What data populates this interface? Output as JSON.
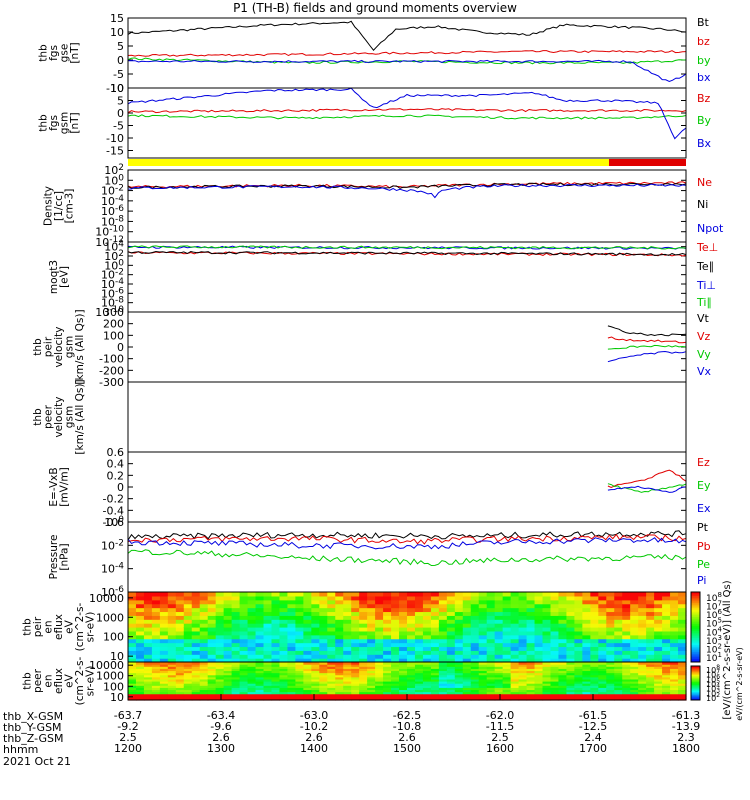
{
  "title": "P1 (TH-B) fields and ground moments overview",
  "date_label": "2021 Oct 21",
  "row_labels": [
    "thb_X-GSM",
    "thb_Y-GSM",
    "thb_Z-GSM",
    "hhmm"
  ],
  "time_axis": {
    "columns": [
      {
        "x": "-63.7",
        "y": "-9.2",
        "z": "2.5",
        "hhmm": "1200"
      },
      {
        "x": "-63.4",
        "y": "-9.6",
        "z": "2.6",
        "hhmm": "1300"
      },
      {
        "x": "-63.0",
        "y": "-10.2",
        "z": "2.6",
        "hhmm": "1400"
      },
      {
        "x": "-62.5",
        "y": "-10.8",
        "z": "2.6",
        "hhmm": "1500"
      },
      {
        "x": "-62.0",
        "y": "-11.5",
        "z": "2.5",
        "hhmm": "1600"
      },
      {
        "x": "-61.5",
        "y": "-12.5",
        "z": "2.4",
        "hhmm": "1700"
      },
      {
        "x": "-61.3",
        "y": "-13.9",
        "z": "2.3",
        "hhmm": "1800"
      }
    ]
  },
  "colors": {
    "black": "#000000",
    "red": "#e00000",
    "green": "#00c800",
    "blue": "#0000e0",
    "yellow": "#ffff00"
  },
  "chart_data": [
    {
      "type": "line",
      "ylabel": [
        "thb",
        "fgs",
        "gse",
        "[nT]"
      ],
      "ylim": [
        -10,
        15
      ],
      "yticks": [
        -10,
        -5,
        0,
        5,
        10,
        15
      ],
      "series": [
        {
          "name": "Bt",
          "color": "#000000",
          "values": [
            [
              0,
              9.5
            ],
            [
              0.25,
              12.5
            ],
            [
              0.4,
              13.5
            ],
            [
              0.44,
              3.5
            ],
            [
              0.48,
              11
            ],
            [
              0.55,
              12
            ],
            [
              0.63,
              10
            ],
            [
              0.72,
              9
            ],
            [
              0.78,
              12.5
            ],
            [
              0.86,
              12
            ],
            [
              0.96,
              11
            ],
            [
              1.0,
              10
            ]
          ]
        },
        {
          "name": "bz",
          "color": "#e00000",
          "values": [
            [
              0,
              1.5
            ],
            [
              0.3,
              2
            ],
            [
              0.5,
              2.5
            ],
            [
              0.7,
              3
            ],
            [
              0.85,
              3
            ],
            [
              1.0,
              3
            ]
          ]
        },
        {
          "name": "by",
          "color": "#00c800",
          "values": [
            [
              0,
              0.5
            ],
            [
              0.3,
              -1
            ],
            [
              0.5,
              -0.5
            ],
            [
              0.7,
              -1
            ],
            [
              0.9,
              -1
            ],
            [
              1.0,
              0
            ]
          ]
        },
        {
          "name": "bx",
          "color": "#0000e0",
          "values": [
            [
              0,
              -0.5
            ],
            [
              0.5,
              -0.5
            ],
            [
              0.9,
              -0.5
            ],
            [
              0.97,
              -8
            ],
            [
              1.0,
              -5
            ]
          ]
        }
      ]
    },
    {
      "type": "line",
      "ylabel": [
        "thb",
        "fgs",
        "gsm",
        "[nT]"
      ],
      "ylim": [
        -18,
        10
      ],
      "yticks": [
        -15,
        -10,
        -5,
        0,
        5,
        10
      ],
      "series": [
        {
          "name": "Bz",
          "color": "#e00000",
          "values": [
            [
              0,
              0.5
            ],
            [
              0.3,
              1
            ],
            [
              0.5,
              1.5
            ],
            [
              0.7,
              1
            ],
            [
              0.9,
              1
            ],
            [
              1.0,
              1
            ]
          ]
        },
        {
          "name": "By",
          "color": "#00c800",
          "values": [
            [
              0,
              -1
            ],
            [
              0.3,
              -2
            ],
            [
              0.5,
              -1
            ],
            [
              0.7,
              -2
            ],
            [
              0.9,
              -2
            ],
            [
              1.0,
              -1
            ]
          ]
        },
        {
          "name": "Bx",
          "color": "#0000e0",
          "values": [
            [
              0,
              4
            ],
            [
              0.25,
              9
            ],
            [
              0.4,
              9.5
            ],
            [
              0.44,
              2
            ],
            [
              0.5,
              7
            ],
            [
              0.63,
              7
            ],
            [
              0.73,
              8
            ],
            [
              0.78,
              5
            ],
            [
              0.86,
              5
            ],
            [
              0.95,
              4
            ],
            [
              0.98,
              -10
            ],
            [
              1.0,
              -6
            ]
          ]
        }
      ]
    },
    {
      "type": "bar",
      "name": "mode bar",
      "segments": [
        {
          "from": 0,
          "to": 0.862,
          "color": "#ffff00"
        },
        {
          "from": 0.862,
          "to": 1.0,
          "color": "#e00000"
        }
      ]
    },
    {
      "type": "line",
      "ylabel": [
        "Density",
        "[1/cc]",
        "[cm-3]"
      ],
      "scale": "log",
      "ylim": [
        1e-12,
        100
      ],
      "yticks": [
        "10^2",
        "10^0",
        "10^-2",
        "10^-4",
        "10^-6",
        "10^-8",
        "10^-10",
        "10^-12"
      ],
      "series": [
        {
          "name": "Ne",
          "color": "#e00000",
          "values": [
            [
              0,
              0.05
            ],
            [
              0.3,
              0.1
            ],
            [
              0.5,
              0.05
            ],
            [
              0.7,
              0.2
            ],
            [
              1.0,
              0.3
            ]
          ]
        },
        {
          "name": "Ni",
          "color": "#000000",
          "values": [
            [
              0,
              0.04
            ],
            [
              0.3,
              0.08
            ],
            [
              0.5,
              0.04
            ],
            [
              0.7,
              0.15
            ],
            [
              1.0,
              0.2
            ]
          ]
        },
        {
          "name": "Npot",
          "color": "#0000e0",
          "values": [
            [
              0,
              0.03
            ],
            [
              0.3,
              0.06
            ],
            [
              0.55,
              0.0003
            ],
            [
              0.7,
              0.1
            ],
            [
              1.0,
              0.1
            ]
          ]
        }
      ]
    },
    {
      "type": "line",
      "ylabel": [
        "moqt3",
        "[eV]"
      ],
      "scale": "log",
      "ylim": [
        1e-10,
        100000.0
      ],
      "yticks": [
        "10^4",
        "10^2",
        "10^0",
        "10^-2",
        "10^-4",
        "10^-6",
        "10^-8",
        "10^-10"
      ],
      "series": [
        {
          "name": "Te⊥",
          "color": "#e00000",
          "values": [
            [
              0,
              500
            ],
            [
              0.5,
              300
            ],
            [
              0.9,
              200
            ],
            [
              1.0,
              150
            ]
          ]
        },
        {
          "name": "Te∥",
          "color": "#000000",
          "values": [
            [
              0,
              600
            ],
            [
              0.5,
              400
            ],
            [
              0.9,
              250
            ],
            [
              1.0,
              200
            ]
          ]
        },
        {
          "name": "Ti⊥",
          "color": "#0000e0",
          "values": [
            [
              0,
              8000
            ],
            [
              0.5,
              6000
            ],
            [
              0.9,
              5000
            ],
            [
              1.0,
              4000
            ]
          ]
        },
        {
          "name": "Ti∥",
          "color": "#00c800",
          "values": [
            [
              0,
              9000
            ],
            [
              0.5,
              7000
            ],
            [
              0.9,
              6000
            ],
            [
              1.0,
              5000
            ]
          ]
        }
      ]
    },
    {
      "type": "line",
      "ylabel": [
        "thb",
        "peir",
        "velocity",
        "gsm",
        "[km/s (All Qs)]"
      ],
      "ylim": [
        -300,
        300
      ],
      "yticks": [
        -300,
        -200,
        -100,
        0,
        100,
        200,
        300
      ],
      "series": [
        {
          "name": "Vt",
          "color": "#000000",
          "values": [
            [
              0.86,
              180
            ],
            [
              0.9,
              120
            ],
            [
              0.95,
              100
            ],
            [
              1.0,
              110
            ]
          ]
        },
        {
          "name": "Vz",
          "color": "#e00000",
          "values": [
            [
              0.86,
              80
            ],
            [
              0.9,
              60
            ],
            [
              0.95,
              50
            ],
            [
              1.0,
              40
            ]
          ]
        },
        {
          "name": "Vy",
          "color": "#00c800",
          "values": [
            [
              0.86,
              -20
            ],
            [
              0.9,
              0
            ],
            [
              0.95,
              10
            ],
            [
              1.0,
              0
            ]
          ]
        },
        {
          "name": "Vx",
          "color": "#0000e0",
          "values": [
            [
              0.86,
              -130
            ],
            [
              0.9,
              -80
            ],
            [
              0.95,
              -50
            ],
            [
              1.0,
              -40
            ]
          ]
        }
      ]
    },
    {
      "type": "line",
      "ylabel": [
        "thb",
        "peer",
        "velocity",
        "gsm",
        "[km/s (All Qs)]"
      ],
      "ylim": [
        0,
        1
      ],
      "yticks": [],
      "series": [
        {
          "name": "Vt",
          "color": "#000000",
          "values": []
        },
        {
          "name": "Vz",
          "color": "#e00000",
          "values": []
        },
        {
          "name": "Vy",
          "color": "#00c800",
          "values": []
        },
        {
          "name": "Vx",
          "color": "#0000e0",
          "values": []
        }
      ]
    },
    {
      "type": "line",
      "ylabel": [
        "E=-VxB",
        "[mV/m]"
      ],
      "ylim": [
        -0.6,
        0.6
      ],
      "yticks": [
        -0.6,
        -0.4,
        -0.2,
        0.0,
        0.2,
        0.4,
        0.6
      ],
      "series": [
        {
          "name": "Ez",
          "color": "#e00000",
          "values": [
            [
              0.86,
              0.0
            ],
            [
              0.92,
              0.1
            ],
            [
              0.97,
              0.3
            ],
            [
              1.0,
              0.1
            ]
          ]
        },
        {
          "name": "Ey",
          "color": "#00c800",
          "values": [
            [
              0.86,
              0.05
            ],
            [
              0.92,
              -0.1
            ],
            [
              0.97,
              0.0
            ],
            [
              1.0,
              0.05
            ]
          ]
        },
        {
          "name": "Ex",
          "color": "#0000e0",
          "values": [
            [
              0.86,
              -0.05
            ],
            [
              0.92,
              0.0
            ],
            [
              0.97,
              -0.1
            ],
            [
              1.0,
              0.0
            ]
          ]
        }
      ]
    },
    {
      "type": "line",
      "ylabel": [
        "Pressure",
        "[nPa]"
      ],
      "scale": "log",
      "ylim": [
        1e-06,
        1
      ],
      "yticks": [
        "10^0",
        "10^-2",
        "10^-4",
        "10^-6"
      ],
      "series": [
        {
          "name": "Pt",
          "color": "#000000",
          "values": [
            [
              0,
              0.05
            ],
            [
              0.3,
              0.08
            ],
            [
              0.6,
              0.06
            ],
            [
              0.9,
              0.1
            ],
            [
              1.0,
              0.1
            ]
          ]
        },
        {
          "name": "Pb",
          "color": "#e00000",
          "values": [
            [
              0,
              0.03
            ],
            [
              0.3,
              0.04
            ],
            [
              0.5,
              0.02
            ],
            [
              0.6,
              0.03
            ],
            [
              0.9,
              0.05
            ],
            [
              1.0,
              0.04
            ]
          ]
        },
        {
          "name": "Pe",
          "color": "#00c800",
          "values": [
            [
              0,
              0.003
            ],
            [
              0.3,
              0.0008
            ],
            [
              0.55,
              0.0003
            ],
            [
              0.7,
              0.0006
            ],
            [
              1.0,
              0.001
            ]
          ]
        },
        {
          "name": "Pi",
          "color": "#0000e0",
          "values": [
            [
              0,
              0.02
            ],
            [
              0.3,
              0.01
            ],
            [
              0.55,
              0.008
            ],
            [
              0.7,
              0.02
            ],
            [
              0.9,
              0.03
            ],
            [
              1.0,
              0.02
            ]
          ]
        }
      ]
    },
    {
      "type": "heatmap",
      "ylabel": [
        "thb",
        "peir",
        "en",
        "eflux",
        "eV",
        "(cm^2-s-",
        "sr-eV)"
      ],
      "scale": "log",
      "ylim": [
        5,
        20000
      ],
      "yticks": [
        "10000",
        "1000",
        "100",
        "10"
      ]
    },
    {
      "type": "heatmap",
      "ylabel": [
        "thb",
        "peer",
        "en",
        "eflux",
        "eV",
        "(cm^2-s-",
        "sr-eV)"
      ],
      "scale": "log",
      "ylim": [
        5,
        20000
      ],
      "yticks": [
        "10000",
        "1000",
        "100",
        "10"
      ]
    }
  ],
  "colorbar": {
    "label": "[eV/(cm^2-s-sr-eV)] (All Qs)",
    "upper_ticks": [
      "10^8",
      "10^7",
      "10^6",
      "10^5",
      "10^4",
      "10^3",
      "10^2",
      "10^1"
    ],
    "lower_ticks": [
      "10^8",
      "10^7",
      "10^6",
      "10^5",
      "10^4",
      "10^3",
      "10^2"
    ],
    "lower_label": "eV/(cm^2-s-sr-eV)"
  }
}
